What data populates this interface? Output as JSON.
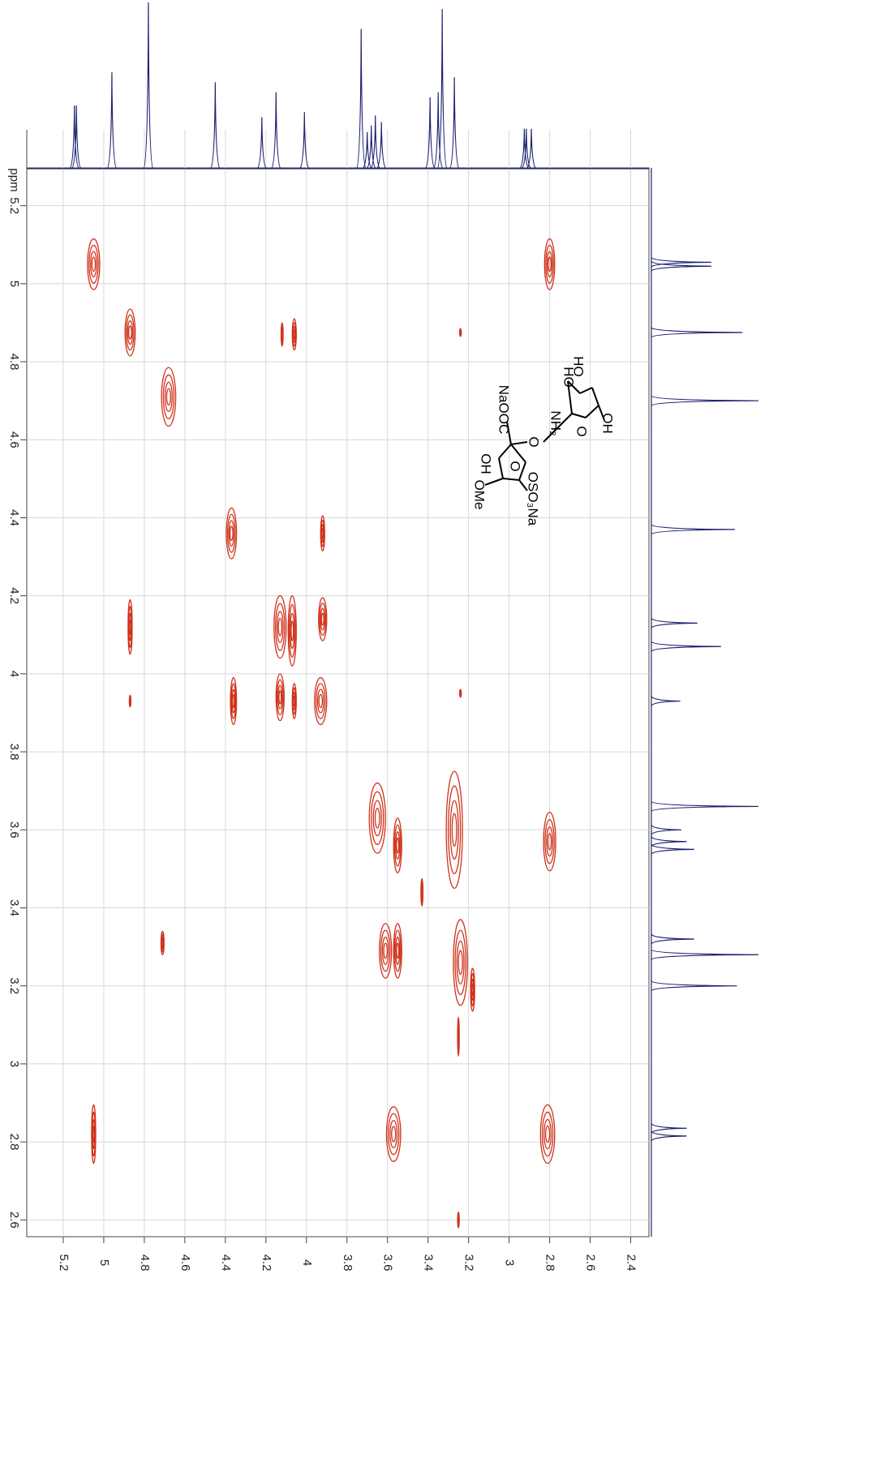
{
  "chart_data": {
    "type": "cosy",
    "xlim": [
      5.38,
      2.31
    ],
    "ylim": [
      5.297,
      2.557
    ],
    "xticks": [
      5.2,
      5.0,
      4.8,
      4.6,
      4.4,
      4.2,
      4.0,
      3.8,
      3.6,
      3.4,
      3.2,
      3.0,
      2.8,
      2.6,
      2.4
    ],
    "yticks": [
      5.2,
      5.0,
      4.8,
      4.6,
      4.4,
      4.2,
      4.0,
      3.8,
      3.6,
      3.4,
      3.2,
      3.0,
      2.8,
      2.6
    ],
    "y_unit": "ppm",
    "grid": true,
    "contour_color": "#d0321a",
    "spectrum_color": "#1c2270",
    "peaks": [
      {
        "x": 5.05,
        "y": 5.05,
        "w": 0.06,
        "h": 0.13
      },
      {
        "x": 2.8,
        "y": 5.05,
        "w": 0.05,
        "h": 0.13
      },
      {
        "x": 4.87,
        "y": 4.875,
        "w": 0.05,
        "h": 0.12
      },
      {
        "x": 4.12,
        "y": 4.87,
        "w": 0.01,
        "h": 0.06
      },
      {
        "x": 4.06,
        "y": 4.87,
        "w": 0.02,
        "h": 0.08
      },
      {
        "x": 3.24,
        "y": 4.875,
        "w": 0.008,
        "h": 0.02
      },
      {
        "x": 4.68,
        "y": 4.71,
        "w": 0.07,
        "h": 0.15
      },
      {
        "x": 4.37,
        "y": 4.36,
        "w": 0.05,
        "h": 0.13
      },
      {
        "x": 3.92,
        "y": 4.36,
        "w": 0.02,
        "h": 0.09
      },
      {
        "x": 4.87,
        "y": 4.12,
        "w": 0.02,
        "h": 0.14
      },
      {
        "x": 4.13,
        "y": 4.12,
        "w": 0.06,
        "h": 0.16
      },
      {
        "x": 4.07,
        "y": 4.11,
        "w": 0.04,
        "h": 0.18
      },
      {
        "x": 3.92,
        "y": 4.14,
        "w": 0.04,
        "h": 0.11
      },
      {
        "x": 4.87,
        "y": 3.93,
        "w": 0.008,
        "h": 0.03
      },
      {
        "x": 4.36,
        "y": 3.93,
        "w": 0.03,
        "h": 0.12
      },
      {
        "x": 4.13,
        "y": 3.94,
        "w": 0.04,
        "h": 0.12
      },
      {
        "x": 4.06,
        "y": 3.93,
        "w": 0.02,
        "h": 0.09
      },
      {
        "x": 3.93,
        "y": 3.93,
        "w": 0.06,
        "h": 0.12
      },
      {
        "x": 3.24,
        "y": 3.95,
        "w": 0.008,
        "h": 0.02
      },
      {
        "x": 3.65,
        "y": 3.63,
        "w": 0.08,
        "h": 0.18
      },
      {
        "x": 3.55,
        "y": 3.56,
        "w": 0.04,
        "h": 0.14
      },
      {
        "x": 3.27,
        "y": 3.6,
        "w": 0.08,
        "h": 0.3
      },
      {
        "x": 2.8,
        "y": 3.57,
        "w": 0.06,
        "h": 0.15
      },
      {
        "x": 3.43,
        "y": 3.44,
        "w": 0.01,
        "h": 0.07
      },
      {
        "x": 4.71,
        "y": 3.31,
        "w": 0.015,
        "h": 0.06
      },
      {
        "x": 3.61,
        "y": 3.29,
        "w": 0.06,
        "h": 0.14
      },
      {
        "x": 3.55,
        "y": 3.29,
        "w": 0.04,
        "h": 0.14
      },
      {
        "x": 3.24,
        "y": 3.26,
        "w": 0.07,
        "h": 0.22
      },
      {
        "x": 3.18,
        "y": 3.19,
        "w": 0.02,
        "h": 0.11
      },
      {
        "x": 3.25,
        "y": 3.07,
        "w": 0.008,
        "h": 0.1
      },
      {
        "x": 5.05,
        "y": 2.82,
        "w": 0.02,
        "h": 0.15
      },
      {
        "x": 3.57,
        "y": 2.82,
        "w": 0.07,
        "h": 0.14
      },
      {
        "x": 2.81,
        "y": 2.82,
        "w": 0.07,
        "h": 0.15
      },
      {
        "x": 3.25,
        "y": 2.6,
        "w": 0.008,
        "h": 0.04
      }
    ],
    "top_spectrum": [
      {
        "ppm": 5.145,
        "height": 38
      },
      {
        "ppm": 5.135,
        "height": 38
      },
      {
        "ppm": 4.96,
        "height": 58
      },
      {
        "ppm": 4.78,
        "height": 100
      },
      {
        "ppm": 4.45,
        "height": 52
      },
      {
        "ppm": 4.22,
        "height": 31
      },
      {
        "ppm": 4.15,
        "height": 46
      },
      {
        "ppm": 4.01,
        "height": 34
      },
      {
        "ppm": 3.73,
        "height": 84
      },
      {
        "ppm": 3.7,
        "height": 22
      },
      {
        "ppm": 3.68,
        "height": 26
      },
      {
        "ppm": 3.66,
        "height": 32
      },
      {
        "ppm": 3.63,
        "height": 28
      },
      {
        "ppm": 3.39,
        "height": 43
      },
      {
        "ppm": 3.35,
        "height": 46
      },
      {
        "ppm": 3.33,
        "height": 96
      },
      {
        "ppm": 3.27,
        "height": 55
      },
      {
        "ppm": 2.925,
        "height": 24
      },
      {
        "ppm": 2.915,
        "height": 24
      },
      {
        "ppm": 2.89,
        "height": 24
      }
    ],
    "right_spectrum": [
      {
        "ppm": 5.055,
        "height": 56
      },
      {
        "ppm": 5.045,
        "height": 56
      },
      {
        "ppm": 4.875,
        "height": 85
      },
      {
        "ppm": 4.7,
        "height": 100
      },
      {
        "ppm": 4.37,
        "height": 78
      },
      {
        "ppm": 4.13,
        "height": 43
      },
      {
        "ppm": 4.07,
        "height": 65
      },
      {
        "ppm": 3.93,
        "height": 27
      },
      {
        "ppm": 3.66,
        "height": 100
      },
      {
        "ppm": 3.6,
        "height": 28
      },
      {
        "ppm": 3.57,
        "height": 33
      },
      {
        "ppm": 3.55,
        "height": 40
      },
      {
        "ppm": 3.32,
        "height": 40
      },
      {
        "ppm": 3.28,
        "height": 100
      },
      {
        "ppm": 3.2,
        "height": 80
      },
      {
        "ppm": 2.835,
        "height": 33
      },
      {
        "ppm": 2.815,
        "height": 33
      }
    ],
    "structure": {
      "labels": [
        "HO",
        "HO",
        "OH",
        "O",
        "NH₂",
        "O",
        "NaOOC",
        "O",
        "OH",
        "OMe",
        "OSO₃Na"
      ]
    }
  }
}
